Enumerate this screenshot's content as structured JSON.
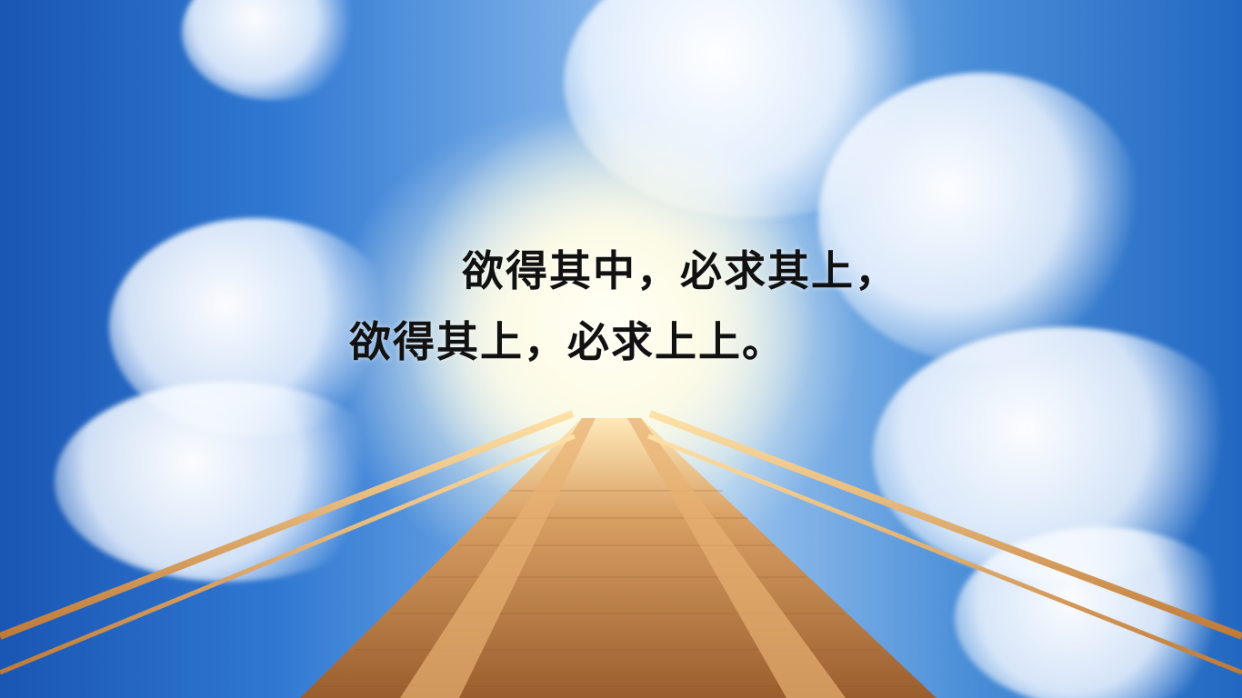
{
  "quote": {
    "line1": "欲得其中，必求其上，",
    "line2": "欲得其上，必求上上。"
  },
  "colors": {
    "sky_blue": "#2f78d2",
    "cloud_white": "#ffffff",
    "bridge_wood": "#c98a4a",
    "railing": "#d99a55",
    "text": "#111111"
  }
}
